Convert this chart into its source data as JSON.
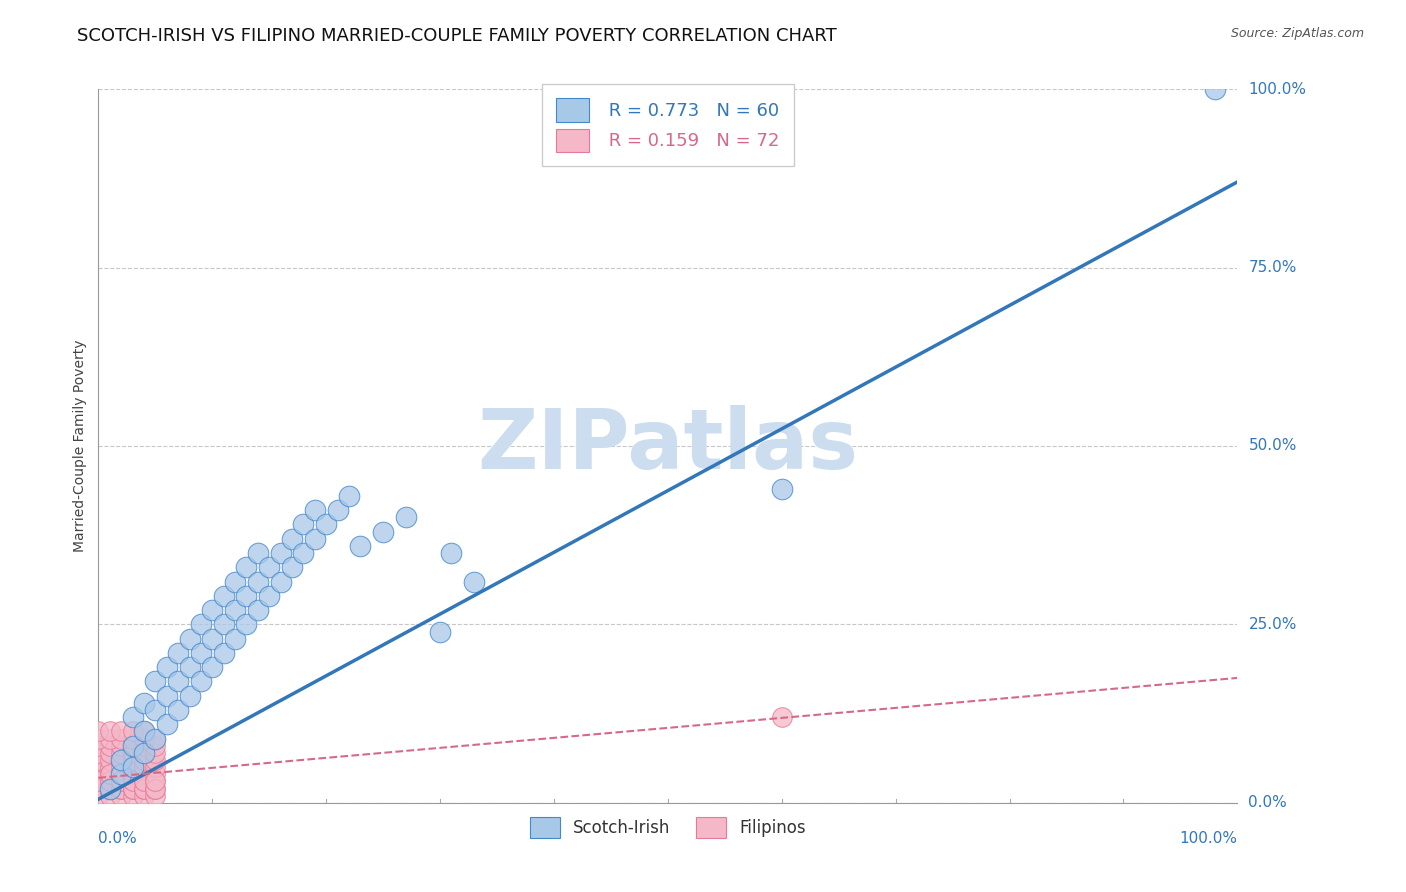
{
  "title": "SCOTCH-IRISH VS FILIPINO MARRIED-COUPLE FAMILY POVERTY CORRELATION CHART",
  "source": "Source: ZipAtlas.com",
  "ylabel": "Married-Couple Family Poverty",
  "xlim": [
    0,
    1
  ],
  "ylim": [
    0,
    1
  ],
  "ytick_labels": [
    "0.0%",
    "25.0%",
    "50.0%",
    "75.0%",
    "100.0%"
  ],
  "ytick_values": [
    0.0,
    0.25,
    0.5,
    0.75,
    1.0
  ],
  "xtick_labels": [
    "0.0%",
    "100.0%"
  ],
  "xtick_values": [
    0.0,
    1.0
  ],
  "grid_color": "#c8c8c8",
  "background_color": "#ffffff",
  "scotch_irish": {
    "R": 0.773,
    "N": 60,
    "color": "#a8c8e8",
    "edge_color": "#4488cc",
    "line_color": "#3377bb",
    "points": [
      [
        0.01,
        0.02
      ],
      [
        0.02,
        0.04
      ],
      [
        0.02,
        0.06
      ],
      [
        0.03,
        0.05
      ],
      [
        0.03,
        0.08
      ],
      [
        0.03,
        0.12
      ],
      [
        0.04,
        0.07
      ],
      [
        0.04,
        0.1
      ],
      [
        0.04,
        0.14
      ],
      [
        0.05,
        0.09
      ],
      [
        0.05,
        0.13
      ],
      [
        0.05,
        0.17
      ],
      [
        0.06,
        0.11
      ],
      [
        0.06,
        0.15
      ],
      [
        0.06,
        0.19
      ],
      [
        0.07,
        0.13
      ],
      [
        0.07,
        0.17
      ],
      [
        0.07,
        0.21
      ],
      [
        0.08,
        0.15
      ],
      [
        0.08,
        0.19
      ],
      [
        0.08,
        0.23
      ],
      [
        0.09,
        0.17
      ],
      [
        0.09,
        0.21
      ],
      [
        0.09,
        0.25
      ],
      [
        0.1,
        0.19
      ],
      [
        0.1,
        0.23
      ],
      [
        0.1,
        0.27
      ],
      [
        0.11,
        0.21
      ],
      [
        0.11,
        0.25
      ],
      [
        0.11,
        0.29
      ],
      [
        0.12,
        0.23
      ],
      [
        0.12,
        0.27
      ],
      [
        0.12,
        0.31
      ],
      [
        0.13,
        0.25
      ],
      [
        0.13,
        0.29
      ],
      [
        0.13,
        0.33
      ],
      [
        0.14,
        0.27
      ],
      [
        0.14,
        0.31
      ],
      [
        0.14,
        0.35
      ],
      [
        0.15,
        0.29
      ],
      [
        0.15,
        0.33
      ],
      [
        0.16,
        0.31
      ],
      [
        0.16,
        0.35
      ],
      [
        0.17,
        0.33
      ],
      [
        0.17,
        0.37
      ],
      [
        0.18,
        0.35
      ],
      [
        0.18,
        0.39
      ],
      [
        0.19,
        0.37
      ],
      [
        0.19,
        0.41
      ],
      [
        0.2,
        0.39
      ],
      [
        0.21,
        0.41
      ],
      [
        0.22,
        0.43
      ],
      [
        0.23,
        0.36
      ],
      [
        0.25,
        0.38
      ],
      [
        0.27,
        0.4
      ],
      [
        0.3,
        0.24
      ],
      [
        0.31,
        0.35
      ],
      [
        0.33,
        0.31
      ],
      [
        0.6,
        0.44
      ],
      [
        0.98,
        1.0
      ]
    ],
    "trend_x": [
      0.0,
      1.0
    ],
    "trend_y": [
      0.005,
      0.87
    ]
  },
  "filipinos": {
    "R": 0.159,
    "N": 72,
    "color": "#f4b8c8",
    "edge_color": "#e87898",
    "line_color": "#d86888",
    "points": [
      [
        0.0,
        0.01
      ],
      [
        0.0,
        0.02
      ],
      [
        0.0,
        0.03
      ],
      [
        0.0,
        0.04
      ],
      [
        0.0,
        0.05
      ],
      [
        0.0,
        0.06
      ],
      [
        0.0,
        0.07
      ],
      [
        0.0,
        0.08
      ],
      [
        0.0,
        0.02
      ],
      [
        0.0,
        0.03
      ],
      [
        0.01,
        0.01
      ],
      [
        0.01,
        0.02
      ],
      [
        0.01,
        0.03
      ],
      [
        0.01,
        0.04
      ],
      [
        0.01,
        0.05
      ],
      [
        0.01,
        0.06
      ],
      [
        0.01,
        0.07
      ],
      [
        0.01,
        0.08
      ],
      [
        0.01,
        0.03
      ],
      [
        0.01,
        0.04
      ],
      [
        0.02,
        0.01
      ],
      [
        0.02,
        0.02
      ],
      [
        0.02,
        0.03
      ],
      [
        0.02,
        0.04
      ],
      [
        0.02,
        0.05
      ],
      [
        0.02,
        0.06
      ],
      [
        0.02,
        0.07
      ],
      [
        0.02,
        0.08
      ],
      [
        0.02,
        0.02
      ],
      [
        0.02,
        0.03
      ],
      [
        0.03,
        0.01
      ],
      [
        0.03,
        0.02
      ],
      [
        0.03,
        0.03
      ],
      [
        0.03,
        0.04
      ],
      [
        0.03,
        0.05
      ],
      [
        0.03,
        0.06
      ],
      [
        0.03,
        0.07
      ],
      [
        0.03,
        0.08
      ],
      [
        0.03,
        0.02
      ],
      [
        0.03,
        0.03
      ],
      [
        0.04,
        0.01
      ],
      [
        0.04,
        0.02
      ],
      [
        0.04,
        0.03
      ],
      [
        0.04,
        0.04
      ],
      [
        0.04,
        0.05
      ],
      [
        0.04,
        0.06
      ],
      [
        0.04,
        0.07
      ],
      [
        0.04,
        0.08
      ],
      [
        0.04,
        0.02
      ],
      [
        0.04,
        0.03
      ],
      [
        0.05,
        0.01
      ],
      [
        0.05,
        0.02
      ],
      [
        0.05,
        0.03
      ],
      [
        0.05,
        0.04
      ],
      [
        0.05,
        0.05
      ],
      [
        0.05,
        0.06
      ],
      [
        0.05,
        0.07
      ],
      [
        0.05,
        0.08
      ],
      [
        0.05,
        0.02
      ],
      [
        0.05,
        0.03
      ],
      [
        0.0,
        0.09
      ],
      [
        0.01,
        0.09
      ],
      [
        0.02,
        0.09
      ],
      [
        0.03,
        0.09
      ],
      [
        0.04,
        0.09
      ],
      [
        0.05,
        0.09
      ],
      [
        0.0,
        0.1
      ],
      [
        0.01,
        0.1
      ],
      [
        0.02,
        0.1
      ],
      [
        0.03,
        0.1
      ],
      [
        0.04,
        0.1
      ],
      [
        0.6,
        0.12
      ]
    ],
    "trend_x": [
      0.0,
      1.0
    ],
    "trend_y": [
      0.035,
      0.175
    ]
  },
  "watermark_text": "ZIPatlas",
  "watermark_color": "#ccddf0",
  "title_fontsize": 13,
  "axis_label_fontsize": 10,
  "tick_fontsize": 11,
  "legend_fontsize": 13
}
